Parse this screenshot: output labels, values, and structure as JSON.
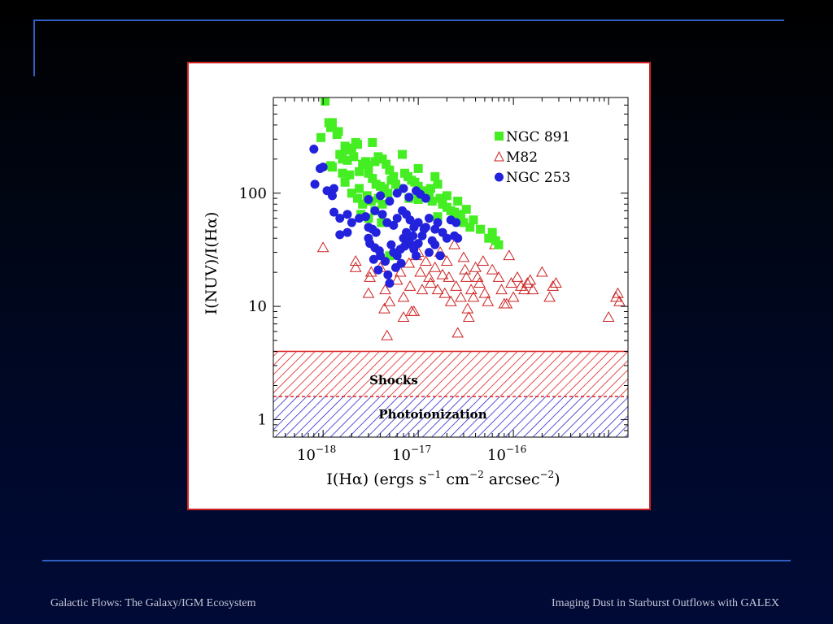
{
  "footer": {
    "left": "Galactic Flows: The Galaxy/IGM Ecosystem",
    "right": "Imaging Dust in Starburst Outflows with GALEX"
  },
  "colors": {
    "background": "#00082a",
    "rule": "#2f5fc0",
    "panel_border": "#cc1f1f",
    "ngc891": "#44ee22",
    "m82": "#cc2222",
    "ngc253": "#2222dd",
    "shocks_hatch": "#dd2222",
    "photo_hatch": "#2a2acc"
  },
  "chart_data": {
    "type": "scatter",
    "x_scale": "log",
    "y_scale": "log",
    "xlim": [
      3e-19,
      1.6e-15
    ],
    "ylim": [
      0.7,
      700
    ],
    "xlabel": {
      "prefix": "I(Hα)  (ergs s",
      "s_exp": "−1",
      "cm": " cm",
      "cm_exp": "−2",
      "arcsec": " arcsec",
      "arcsec_exp": "−2",
      "suffix": ")"
    },
    "ylabel": "I(NUV)/I(Hα)",
    "x_ticks": [
      {
        "value": 1e-18,
        "base": "10",
        "exp": "−18"
      },
      {
        "value": 1e-17,
        "base": "10",
        "exp": "−17"
      },
      {
        "value": 1e-16,
        "base": "10",
        "exp": "−16"
      }
    ],
    "y_ticks": [
      {
        "value": 1,
        "label": "1"
      },
      {
        "value": 10,
        "label": "10"
      },
      {
        "value": 100,
        "label": "100"
      }
    ],
    "legend_position": "top-right",
    "legend": [
      {
        "name": "NGC 891",
        "marker": "square"
      },
      {
        "name": "M82",
        "marker": "triangle"
      },
      {
        "name": "NGC 253",
        "marker": "circle"
      }
    ],
    "regions": [
      {
        "label": "Shocks",
        "y_range": [
          1.6,
          4.0
        ]
      },
      {
        "label": "Photoionization",
        "y_range": [
          0.7,
          1.6
        ]
      }
    ],
    "series": [
      {
        "name": "M82",
        "marker": "triangle",
        "points": [
          [
            1e-18,
            33
          ],
          [
            2.2e-18,
            25
          ],
          [
            2.2e-18,
            22
          ],
          [
            3.2e-18,
            20
          ],
          [
            3.1e-18,
            18
          ],
          [
            3e-18,
            13
          ],
          [
            4e-18,
            22
          ],
          [
            4.5e-18,
            14
          ],
          [
            5e-18,
            11
          ],
          [
            4.4e-18,
            9.5
          ],
          [
            4.7e-18,
            5.5
          ],
          [
            6e-18,
            17
          ],
          [
            6.5e-18,
            20
          ],
          [
            7e-18,
            12
          ],
          [
            7e-18,
            8.0
          ],
          [
            8e-18,
            24
          ],
          [
            8.2e-18,
            15
          ],
          [
            8.5e-18,
            9.0
          ],
          [
            9e-18,
            9.0
          ],
          [
            9.5e-18,
            28
          ],
          [
            1e-17,
            30
          ],
          [
            1.05e-17,
            20
          ],
          [
            1.1e-17,
            14
          ],
          [
            1.2e-17,
            25
          ],
          [
            1.3e-17,
            18
          ],
          [
            1.35e-17,
            16
          ],
          [
            1.5e-17,
            22
          ],
          [
            1.6e-17,
            14
          ],
          [
            1.7e-17,
            30
          ],
          [
            1.8e-17,
            19
          ],
          [
            1.9e-17,
            13
          ],
          [
            2e-17,
            25
          ],
          [
            2.1e-17,
            18
          ],
          [
            2.2e-17,
            11
          ],
          [
            2.4e-17,
            35
          ],
          [
            2.5e-17,
            15
          ],
          [
            2.6e-17,
            5.8
          ],
          [
            2.8e-17,
            12
          ],
          [
            3e-17,
            27
          ],
          [
            3.1e-17,
            21
          ],
          [
            3.2e-17,
            18
          ],
          [
            3.3e-17,
            9.5
          ],
          [
            3.4e-17,
            8.0
          ],
          [
            3.6e-17,
            14
          ],
          [
            3.8e-17,
            12
          ],
          [
            4e-17,
            22
          ],
          [
            4.2e-17,
            18
          ],
          [
            4.4e-17,
            16
          ],
          [
            4.8e-17,
            25
          ],
          [
            5e-17,
            13
          ],
          [
            5.4e-17,
            11
          ],
          [
            6e-17,
            21
          ],
          [
            6.4e-17,
            35
          ],
          [
            7e-17,
            18
          ],
          [
            7.5e-17,
            14
          ],
          [
            8e-17,
            10.5
          ],
          [
            8.5e-17,
            10.5
          ],
          [
            9e-17,
            28
          ],
          [
            9.5e-17,
            16
          ],
          [
            1e-16,
            12
          ],
          [
            1.1e-16,
            18
          ],
          [
            1.2e-16,
            15
          ],
          [
            1.3e-16,
            14
          ],
          [
            1.4e-16,
            16
          ],
          [
            1.5e-16,
            17
          ],
          [
            1.6e-16,
            14
          ],
          [
            2e-16,
            20
          ],
          [
            2.4e-16,
            12
          ],
          [
            2.6e-16,
            15
          ],
          [
            2.8e-16,
            16
          ],
          [
            1e-15,
            8.0
          ],
          [
            1.2e-15,
            12
          ],
          [
            1.25e-15,
            13
          ],
          [
            1.3e-15,
            11
          ]
        ]
      },
      {
        "name": "NGC 891",
        "marker": "square",
        "points": [
          [
            1.05e-18,
            650
          ],
          [
            1.15e-18,
            420
          ],
          [
            1.2e-18,
            380
          ],
          [
            1.4e-18,
            330
          ],
          [
            1.45e-18,
            350
          ],
          [
            9.5e-19,
            310
          ],
          [
            1.5e-18,
            220
          ],
          [
            1.7e-18,
            260
          ],
          [
            1.8e-18,
            240
          ],
          [
            2e-18,
            250
          ],
          [
            2.2e-18,
            280
          ],
          [
            2.3e-18,
            270
          ],
          [
            1.6e-18,
            200
          ],
          [
            1.8e-18,
            195
          ],
          [
            2.1e-18,
            210
          ],
          [
            1.2e-18,
            175
          ],
          [
            1.25e-18,
            170
          ],
          [
            1.6e-18,
            150
          ],
          [
            1.9e-18,
            145
          ],
          [
            1.7e-18,
            125
          ],
          [
            2.4e-18,
            155
          ],
          [
            2.6e-18,
            180
          ],
          [
            2.8e-18,
            190
          ],
          [
            3e-18,
            175
          ],
          [
            3.3e-18,
            280
          ],
          [
            3.5e-18,
            190
          ],
          [
            3.8e-18,
            210
          ],
          [
            4.2e-18,
            200
          ],
          [
            4.6e-18,
            180
          ],
          [
            5e-18,
            160
          ],
          [
            5.5e-18,
            140
          ],
          [
            3e-18,
            150
          ],
          [
            3.3e-18,
            135
          ],
          [
            3.6e-18,
            120
          ],
          [
            4e-18,
            115
          ],
          [
            4.4e-18,
            110
          ],
          [
            2e-18,
            100
          ],
          [
            2.3e-18,
            90
          ],
          [
            2.6e-18,
            80
          ],
          [
            2.9e-18,
            95
          ],
          [
            3.2e-18,
            85
          ],
          [
            3.5e-18,
            70
          ],
          [
            3.8e-18,
            90
          ],
          [
            4.2e-18,
            80
          ],
          [
            2.4e-18,
            110
          ],
          [
            4.8e-18,
            100
          ],
          [
            5.2e-18,
            130
          ],
          [
            5.8e-18,
            120
          ],
          [
            6.2e-18,
            110
          ],
          [
            6.8e-18,
            220
          ],
          [
            7.2e-18,
            150
          ],
          [
            7.8e-18,
            140
          ],
          [
            8.5e-18,
            130
          ],
          [
            9.2e-18,
            125
          ],
          [
            1e-17,
            115
          ],
          [
            1.1e-17,
            105
          ],
          [
            1.2e-17,
            100
          ],
          [
            1.3e-17,
            95
          ],
          [
            1.4e-17,
            85
          ],
          [
            1.5e-17,
            140
          ],
          [
            1.6e-17,
            120
          ],
          [
            1.8e-17,
            80
          ],
          [
            2e-17,
            75
          ],
          [
            2.2e-17,
            70
          ],
          [
            2.4e-17,
            68
          ],
          [
            2.6e-17,
            65
          ],
          [
            2.8e-17,
            60
          ],
          [
            3e-17,
            55
          ],
          [
            3.2e-17,
            72
          ],
          [
            3.5e-17,
            50
          ],
          [
            3.8e-17,
            58
          ],
          [
            4.5e-17,
            48
          ],
          [
            5.5e-17,
            40
          ],
          [
            6.5e-17,
            38
          ],
          [
            7e-17,
            35
          ],
          [
            6e-17,
            45
          ],
          [
            2.5e-18,
            65
          ],
          [
            3e-18,
            60
          ],
          [
            4.1e-18,
            55
          ],
          [
            1e-17,
            88
          ],
          [
            8e-18,
            90
          ],
          [
            5e-18,
            28
          ],
          [
            1.35e-17,
            110
          ],
          [
            1.6e-17,
            62
          ],
          [
            1e-17,
            165
          ],
          [
            1.7e-17,
            90
          ],
          [
            2e-17,
            95
          ],
          [
            2.6e-17,
            85
          ],
          [
            1.25e-18,
            420
          ]
        ]
      },
      {
        "name": "NGC 253",
        "marker": "circle",
        "points": [
          [
            8e-19,
            245
          ],
          [
            8.2e-19,
            120
          ],
          [
            1e-18,
            170
          ],
          [
            9.3e-19,
            165
          ],
          [
            1.3e-18,
            110
          ],
          [
            1.25e-18,
            95
          ],
          [
            1.1e-18,
            105
          ],
          [
            1.3e-18,
            68
          ],
          [
            1.5e-18,
            60
          ],
          [
            1.8e-18,
            65
          ],
          [
            1.5e-18,
            43
          ],
          [
            1.8e-18,
            45
          ],
          [
            2e-18,
            55
          ],
          [
            2.4e-18,
            60
          ],
          [
            2.8e-18,
            62
          ],
          [
            3e-18,
            50
          ],
          [
            3.3e-18,
            48
          ],
          [
            3e-18,
            40
          ],
          [
            3.1e-18,
            36
          ],
          [
            3.5e-18,
            33
          ],
          [
            3.9e-18,
            31
          ],
          [
            3.4e-18,
            26
          ],
          [
            3.8e-18,
            21
          ],
          [
            4e-18,
            28
          ],
          [
            4.5e-18,
            25
          ],
          [
            4.8e-18,
            19
          ],
          [
            5e-18,
            16
          ],
          [
            5.2e-18,
            35
          ],
          [
            5.5e-18,
            30
          ],
          [
            6e-18,
            28
          ],
          [
            6.5e-18,
            32
          ],
          [
            7e-18,
            40
          ],
          [
            7.5e-18,
            45
          ],
          [
            8e-18,
            38
          ],
          [
            8.5e-18,
            35
          ],
          [
            9e-18,
            32
          ],
          [
            9.5e-18,
            28
          ],
          [
            1e-17,
            36
          ],
          [
            1.1e-17,
            42
          ],
          [
            1.2e-17,
            50
          ],
          [
            1.3e-17,
            60
          ],
          [
            1.4e-17,
            38
          ],
          [
            1.5e-17,
            48
          ],
          [
            1.6e-17,
            55
          ],
          [
            1.8e-17,
            45
          ],
          [
            2e-17,
            40
          ],
          [
            2.2e-17,
            58
          ],
          [
            2.4e-17,
            42
          ],
          [
            2.5e-17,
            55
          ],
          [
            3.5e-18,
            70
          ],
          [
            4.2e-18,
            65
          ],
          [
            4.7e-18,
            55
          ],
          [
            5.5e-18,
            52
          ],
          [
            6e-18,
            60
          ],
          [
            6.8e-18,
            70
          ],
          [
            7.5e-18,
            65
          ],
          [
            8.2e-18,
            58
          ],
          [
            9e-18,
            50
          ],
          [
            1e-17,
            55
          ],
          [
            1.15e-17,
            48
          ],
          [
            3e-18,
            88
          ],
          [
            4e-18,
            95
          ],
          [
            5e-18,
            85
          ],
          [
            6e-18,
            100
          ],
          [
            7e-18,
            110
          ],
          [
            8e-18,
            92
          ],
          [
            9.5e-18,
            105
          ],
          [
            1.05e-17,
            98
          ],
          [
            1.2e-17,
            90
          ],
          [
            3.6e-18,
            45
          ],
          [
            5.8e-18,
            22
          ],
          [
            6.6e-18,
            24
          ],
          [
            7.2e-18,
            34
          ],
          [
            8.8e-18,
            42
          ],
          [
            1.3e-17,
            30
          ],
          [
            1.5e-17,
            35
          ],
          [
            1.7e-17,
            28
          ],
          [
            2.6e-17,
            40
          ]
        ]
      }
    ]
  }
}
